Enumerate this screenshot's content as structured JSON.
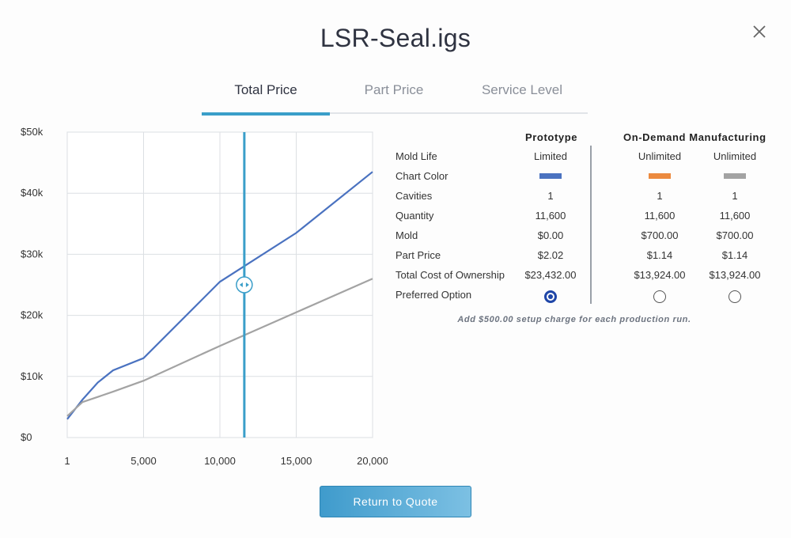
{
  "title": "LSR-Seal.igs",
  "tabs": [
    {
      "label": "Total Price",
      "active": true
    },
    {
      "label": "Part Price",
      "active": false
    },
    {
      "label": "Service Level",
      "active": false
    }
  ],
  "table": {
    "headers": {
      "prototype": "Prototype",
      "on_demand": "On-Demand Manufacturing"
    },
    "rows": [
      {
        "label": "Mold Life",
        "values": [
          "Limited",
          "Unlimited",
          "Unlimited"
        ]
      },
      {
        "label": "Chart Color",
        "values": [
          "",
          "",
          ""
        ]
      },
      {
        "label": "Cavities",
        "values": [
          "1",
          "1",
          "1"
        ]
      },
      {
        "label": "Quantity",
        "values": [
          "11,600",
          "11,600",
          "11,600"
        ]
      },
      {
        "label": "Mold",
        "values": [
          "$0.00",
          "$700.00",
          "$700.00"
        ]
      },
      {
        "label": "Part Price",
        "values": [
          "$2.02",
          "$1.14",
          "$1.14"
        ]
      },
      {
        "label": "Total Cost of Ownership",
        "values": [
          "$23,432.00",
          "$13,924.00",
          "$13,924.00"
        ]
      },
      {
        "label": "Preferred Option",
        "values": [
          "",
          "",
          ""
        ]
      }
    ],
    "chart_colors": [
      "#4a72c0",
      "#ec8a3f",
      "#a3a3a3"
    ],
    "preferred_selected": 0,
    "note": "Add $500.00 setup charge for each production run."
  },
  "return_button": "Return to Quote",
  "chart_data": {
    "type": "line",
    "xlim": [
      1,
      20000
    ],
    "ylim": [
      0,
      50000
    ],
    "x_ticks": [
      {
        "v": 1,
        "label": "1"
      },
      {
        "v": 5000,
        "label": "5,000"
      },
      {
        "v": 10000,
        "label": "10,000"
      },
      {
        "v": 15000,
        "label": "15,000"
      },
      {
        "v": 20000,
        "label": "20,000"
      }
    ],
    "y_ticks": [
      {
        "v": 0,
        "label": "$0"
      },
      {
        "v": 10000,
        "label": "$10k"
      },
      {
        "v": 20000,
        "label": "$20k"
      },
      {
        "v": 30000,
        "label": "$30k"
      },
      {
        "v": 40000,
        "label": "$40k"
      },
      {
        "v": 50000,
        "label": "$50k"
      }
    ],
    "series": [
      {
        "color": "#4a72c0",
        "x": [
          1,
          1000,
          2000,
          3000,
          5000,
          10000,
          15000,
          20000
        ],
        "y": [
          3000,
          6200,
          9000,
          11000,
          13000,
          25500,
          33500,
          43500
        ]
      },
      {
        "color": "#a3a3a3",
        "x": [
          1,
          1000,
          3000,
          5000,
          10000,
          15000,
          20000
        ],
        "y": [
          3500,
          5800,
          7500,
          9300,
          15000,
          20500,
          26000
        ]
      }
    ],
    "marker_x": 11600,
    "grid": true
  }
}
